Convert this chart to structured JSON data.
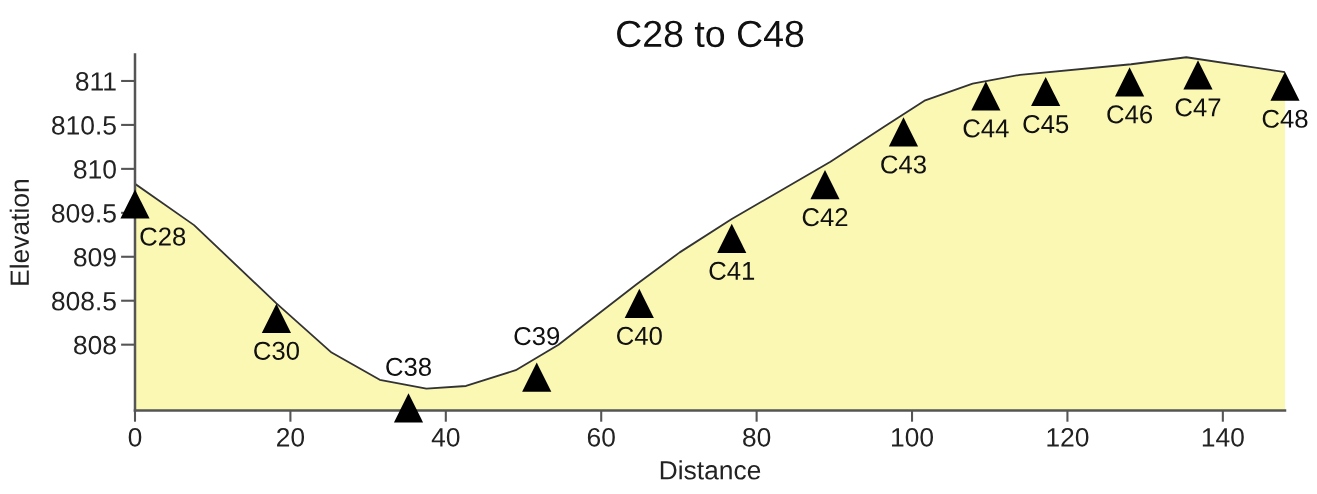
{
  "chart_data": {
    "type": "area",
    "title": "C28 to C48",
    "xlabel": "Distance",
    "ylabel": "Elevation",
    "xlim": [
      0,
      148
    ],
    "xticks": [
      0,
      20,
      40,
      60,
      80,
      100,
      120,
      140
    ],
    "ylim": [
      807.25,
      811.3
    ],
    "yticks": [
      808,
      808.5,
      809,
      809.5,
      810,
      810.5,
      811
    ],
    "series": [
      {
        "color": "#fbf8b4",
        "x": [
          0,
          7.6,
          18.2,
          25.3,
          31.5,
          37.5,
          42.6,
          49.0,
          54.5,
          64.6,
          70.1,
          76.8,
          89.5,
          96.6,
          101.7,
          107.8,
          113.9,
          128.2,
          135.3,
          148
        ],
        "values": [
          809.83,
          809.36,
          808.47,
          807.91,
          807.6,
          807.5,
          807.53,
          807.71,
          808.0,
          808.69,
          809.05,
          809.43,
          810.08,
          810.49,
          810.78,
          810.97,
          811.07,
          811.19,
          811.27,
          811.1
        ]
      },
      {
        "type": "scatter",
        "color": "#000000",
        "marker": "triangle",
        "x": [
          0,
          18.2,
          35.2,
          51.7,
          64.9,
          76.8,
          88.8,
          98.9,
          109.5,
          117.2,
          128.0,
          136.8,
          148
        ],
        "values": [
          809.6,
          808.3,
          807.28,
          807.63,
          808.47,
          809.21,
          809.82,
          810.42,
          810.83,
          810.88,
          810.99,
          811.07,
          810.94
        ]
      }
    ],
    "annotations": [
      {
        "text": "C28",
        "x": 0,
        "y": 809.6
      },
      {
        "text": "C30",
        "x": 18.2,
        "y": 808.3
      },
      {
        "text": "C38",
        "x": 35.2,
        "y": 807.28
      },
      {
        "text": "C39",
        "x": 51.7,
        "y": 807.63
      },
      {
        "text": "C40",
        "x": 64.9,
        "y": 808.47
      },
      {
        "text": "C41",
        "x": 76.8,
        "y": 809.21
      },
      {
        "text": "C42",
        "x": 88.8,
        "y": 809.82
      },
      {
        "text": "C43",
        "x": 98.9,
        "y": 810.42
      },
      {
        "text": "C44",
        "x": 109.5,
        "y": 810.83
      },
      {
        "text": "C45",
        "x": 117.2,
        "y": 810.88
      },
      {
        "text": "C46",
        "x": 128.0,
        "y": 810.99
      },
      {
        "text": "C47",
        "x": 136.8,
        "y": 811.07
      },
      {
        "text": "C48",
        "x": 148,
        "y": 810.94
      }
    ]
  }
}
